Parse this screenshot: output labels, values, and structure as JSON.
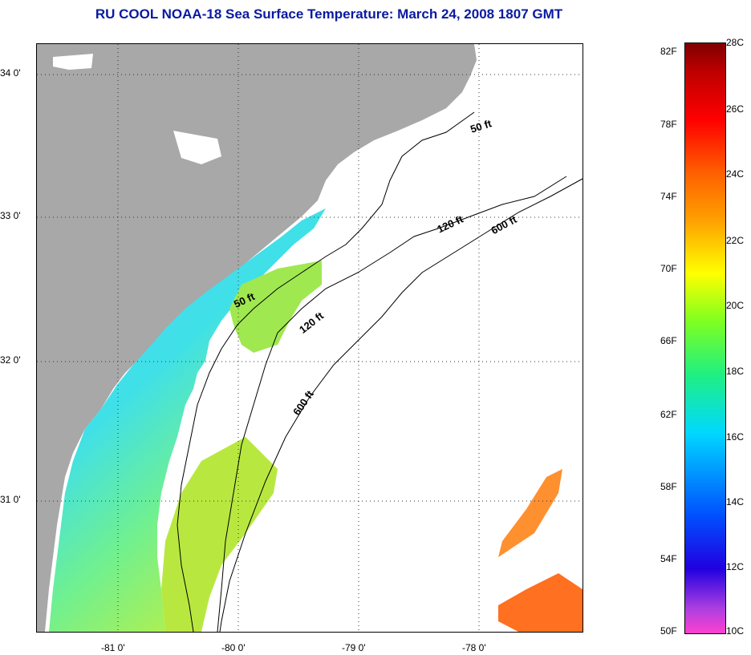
{
  "title": "RU COOL  NOAA-18  Sea Surface Temperature:  March 24, 2008 1807 GMT",
  "map": {
    "lat_labels": [
      "34 0'",
      "33 0'",
      "32 0'",
      "31 0'"
    ],
    "lon_labels": [
      "-81 0'",
      "-80 0'",
      "-79 0'",
      "-78 0'"
    ],
    "contour_labels": [
      "50 ft",
      "120 ft",
      "600 ft",
      "50 ft",
      "120 ft",
      "600 ft"
    ],
    "colors": {
      "land": "#a8a8a8",
      "cloud": "#ffffff",
      "near_shore_cool": "#40d8f0",
      "offshore_warm": "#b0f040",
      "gulf_stream": "#ff8020"
    }
  },
  "colorbar": {
    "fahrenheit_labels": [
      "82F",
      "78F",
      "74F",
      "70F",
      "66F",
      "62F",
      "58F",
      "54F",
      "50F"
    ],
    "celsius_labels": [
      "28C",
      "26C",
      "24C",
      "22C",
      "20C",
      "18C",
      "16C",
      "14C",
      "12C",
      "10C"
    ]
  }
}
